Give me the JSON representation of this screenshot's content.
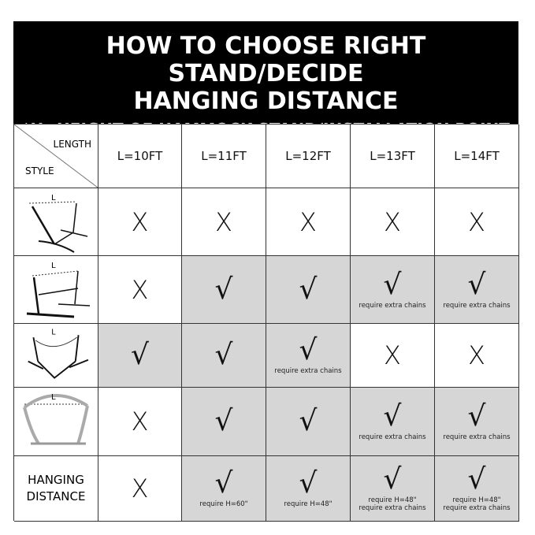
{
  "header": {
    "title_line1": "HOW TO CHOOSE RIGHT STAND/DECIDE",
    "title_line2": "HANGING DISTANCE",
    "subtitle": "*H=HEIGHT OF HAMMOCK STAND/INSTALLATION POINT"
  },
  "corner": {
    "length": "LENGTH",
    "style": "STYLE"
  },
  "columns": [
    "L=10FT",
    "L=11FT",
    "L=12FT",
    "L=13FT",
    "L=14FT"
  ],
  "symbols": {
    "no": "X",
    "yes": "√"
  },
  "rows": [
    {
      "label": "",
      "icon": "stand-style-1",
      "cells": [
        {
          "v": "X",
          "shaded": false,
          "note": ""
        },
        {
          "v": "X",
          "shaded": false,
          "note": ""
        },
        {
          "v": "X",
          "shaded": false,
          "note": ""
        },
        {
          "v": "X",
          "shaded": false,
          "note": ""
        },
        {
          "v": "X",
          "shaded": false,
          "note": ""
        }
      ]
    },
    {
      "label": "",
      "icon": "stand-style-2",
      "cells": [
        {
          "v": "X",
          "shaded": false,
          "note": ""
        },
        {
          "v": "√",
          "shaded": true,
          "note": ""
        },
        {
          "v": "√",
          "shaded": true,
          "note": ""
        },
        {
          "v": "√",
          "shaded": true,
          "note": "require extra chains"
        },
        {
          "v": "√",
          "shaded": true,
          "note": "require extra chains"
        }
      ]
    },
    {
      "label": "",
      "icon": "stand-style-3",
      "cells": [
        {
          "v": "√",
          "shaded": true,
          "note": ""
        },
        {
          "v": "√",
          "shaded": true,
          "note": ""
        },
        {
          "v": "√",
          "shaded": true,
          "note": "require extra chains"
        },
        {
          "v": "X",
          "shaded": false,
          "note": ""
        },
        {
          "v": "X",
          "shaded": false,
          "note": ""
        }
      ]
    },
    {
      "label": "",
      "icon": "arc-stand",
      "cells": [
        {
          "v": "X",
          "shaded": false,
          "note": ""
        },
        {
          "v": "√",
          "shaded": true,
          "note": ""
        },
        {
          "v": "√",
          "shaded": true,
          "note": ""
        },
        {
          "v": "√",
          "shaded": true,
          "note": "require extra chains"
        },
        {
          "v": "√",
          "shaded": true,
          "note": "require extra chains"
        }
      ]
    },
    {
      "label": "HANGING DISTANCE",
      "icon": "",
      "cells": [
        {
          "v": "X",
          "shaded": false,
          "note": ""
        },
        {
          "v": "√",
          "shaded": true,
          "note": "require H=60\""
        },
        {
          "v": "√",
          "shaded": true,
          "note": "require H=48\""
        },
        {
          "v": "√",
          "shaded": true,
          "note": "require H=48\"\nrequire extra chains"
        },
        {
          "v": "√",
          "shaded": true,
          "note": "require H=48\"\nrequire extra chains"
        }
      ]
    }
  ],
  "icon_label": "L",
  "colors": {
    "header_bg": "#000000",
    "shaded": "#d6d6d6"
  }
}
